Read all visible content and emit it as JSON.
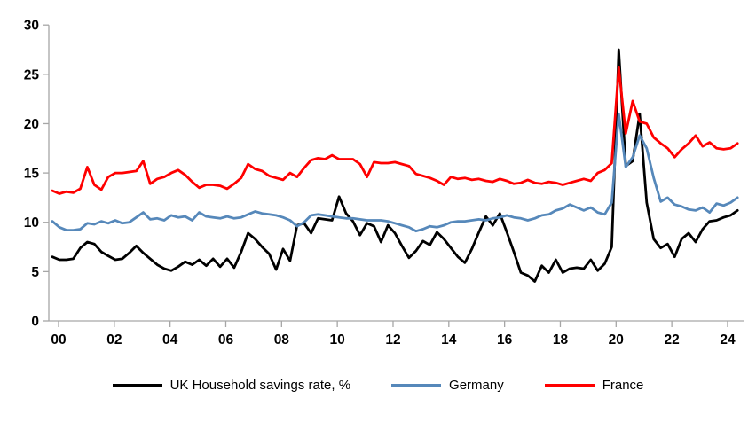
{
  "chart_data": {
    "type": "line",
    "title": "",
    "xlabel": "",
    "ylabel": "",
    "frequency": "quarterly",
    "x_start": "2000Q1",
    "x_end": "2024Q3",
    "x_tick_labels": [
      "00",
      "02",
      "04",
      "06",
      "08",
      "10",
      "12",
      "14",
      "16",
      "18",
      "20",
      "22",
      "24"
    ],
    "y_ticks": [
      0,
      5,
      10,
      15,
      20,
      25,
      30
    ],
    "ylim": [
      0,
      30
    ],
    "grid": false,
    "legend_position": "bottom",
    "axis_color": "#a6a6a6",
    "series": [
      {
        "name": "UK Household savings rate, %",
        "color": "#000000",
        "values": [
          6.5,
          6.2,
          6.2,
          6.3,
          7.4,
          8.0,
          7.8,
          7.0,
          6.6,
          6.2,
          6.3,
          6.9,
          7.6,
          6.9,
          6.3,
          5.7,
          5.3,
          5.1,
          5.5,
          6.0,
          5.7,
          6.2,
          5.6,
          6.3,
          5.5,
          6.3,
          5.4,
          7.0,
          8.9,
          8.3,
          7.5,
          6.8,
          5.2,
          7.3,
          6.1,
          9.7,
          9.9,
          8.9,
          10.4,
          10.3,
          10.2,
          12.6,
          10.9,
          10.1,
          8.7,
          9.9,
          9.6,
          8.0,
          9.7,
          8.9,
          7.6,
          6.4,
          7.1,
          8.1,
          7.7,
          9.0,
          8.3,
          7.4,
          6.5,
          5.9,
          7.3,
          9.0,
          10.6,
          9.7,
          10.9,
          9.0,
          7.0,
          4.9,
          4.6,
          4.0,
          5.6,
          4.9,
          6.2,
          4.9,
          5.3,
          5.4,
          5.3,
          6.2,
          5.1,
          5.8,
          7.5,
          27.5,
          15.7,
          16.2,
          21.0,
          12.0,
          8.3,
          7.4,
          7.8,
          6.5,
          8.3,
          8.9,
          8.0,
          9.3,
          10.1,
          10.2,
          10.5,
          10.7,
          11.2
        ]
      },
      {
        "name": "Germany",
        "color": "#5688BA",
        "values": [
          10.1,
          9.5,
          9.2,
          9.2,
          9.3,
          9.9,
          9.8,
          10.1,
          9.9,
          10.2,
          9.9,
          10.0,
          10.5,
          11.0,
          10.3,
          10.4,
          10.2,
          10.7,
          10.5,
          10.6,
          10.2,
          11.0,
          10.6,
          10.5,
          10.4,
          10.6,
          10.4,
          10.5,
          10.8,
          11.1,
          10.9,
          10.8,
          10.7,
          10.5,
          10.2,
          9.6,
          10.0,
          10.7,
          10.8,
          10.7,
          10.6,
          10.5,
          10.4,
          10.4,
          10.3,
          10.2,
          10.2,
          10.2,
          10.1,
          9.9,
          9.7,
          9.5,
          9.1,
          9.3,
          9.6,
          9.5,
          9.7,
          10.0,
          10.1,
          10.1,
          10.2,
          10.3,
          10.2,
          10.4,
          10.5,
          10.7,
          10.5,
          10.4,
          10.2,
          10.4,
          10.7,
          10.8,
          11.2,
          11.4,
          11.8,
          11.5,
          11.2,
          11.5,
          11.0,
          10.8,
          12.0,
          21.0,
          15.6,
          16.6,
          18.8,
          17.5,
          14.5,
          12.1,
          12.5,
          11.8,
          11.6,
          11.3,
          11.2,
          11.5,
          11.0,
          11.9,
          11.7,
          12.0,
          12.5
        ]
      },
      {
        "name": "France",
        "color": "#FF0000",
        "values": [
          13.2,
          12.9,
          13.1,
          13.0,
          13.4,
          15.6,
          13.8,
          13.3,
          14.6,
          15.0,
          15.0,
          15.1,
          15.2,
          16.2,
          13.9,
          14.4,
          14.6,
          15.0,
          15.3,
          14.8,
          14.1,
          13.5,
          13.8,
          13.8,
          13.7,
          13.4,
          13.9,
          14.5,
          15.9,
          15.4,
          15.2,
          14.7,
          14.5,
          14.3,
          15.0,
          14.6,
          15.5,
          16.3,
          16.5,
          16.4,
          16.8,
          16.4,
          16.4,
          16.4,
          15.9,
          14.6,
          16.1,
          16.0,
          16.0,
          16.1,
          15.9,
          15.7,
          14.9,
          14.7,
          14.5,
          14.2,
          13.8,
          14.6,
          14.4,
          14.5,
          14.3,
          14.4,
          14.2,
          14.1,
          14.4,
          14.2,
          13.9,
          14.0,
          14.3,
          14.0,
          13.9,
          14.1,
          14.0,
          13.8,
          14.0,
          14.2,
          14.4,
          14.2,
          15.0,
          15.3,
          16.0,
          25.7,
          19.0,
          22.3,
          20.2,
          20.0,
          18.6,
          18.0,
          17.5,
          16.6,
          17.4,
          18.0,
          18.8,
          17.7,
          18.1,
          17.5,
          17.4,
          17.5,
          18.0
        ]
      }
    ]
  }
}
